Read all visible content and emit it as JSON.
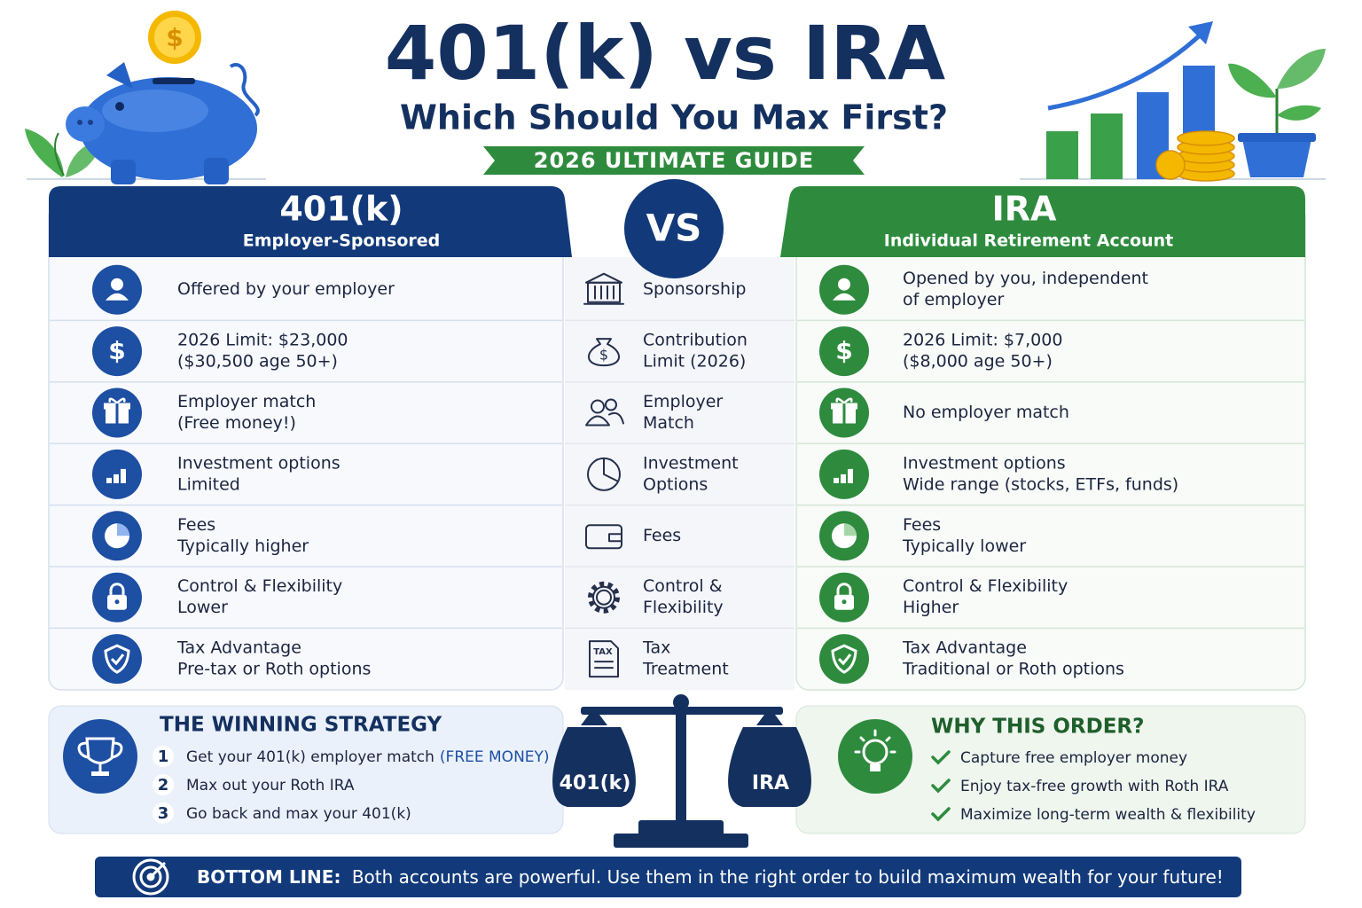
{
  "header": {
    "title": "401(k) vs IRA",
    "subtitle": "Which Should You Max First?",
    "badge": "2026 ULTIMATE GUIDE"
  },
  "icon_text": {
    "dollar": "$",
    "tax": "TAX"
  },
  "vs": "VS",
  "left": {
    "title": "401(k)",
    "subtitle": "Employer-Sponsored",
    "rows": [
      [
        "Offered by your employer"
      ],
      [
        "2026 Limit: $23,000",
        "($30,500 age 50+)"
      ],
      [
        "Employer match",
        "(Free money!)"
      ],
      [
        "Investment options",
        "Limited"
      ],
      [
        "Fees",
        "Typically higher"
      ],
      [
        "Control & Flexibility",
        "Lower"
      ],
      [
        "Tax Advantage",
        "Pre-tax or Roth options"
      ]
    ]
  },
  "middle": {
    "rows": [
      [
        "Sponsorship"
      ],
      [
        "Contribution",
        "Limit (2026)"
      ],
      [
        "Employer",
        "Match"
      ],
      [
        "Investment",
        "Options"
      ],
      [
        "Fees"
      ],
      [
        "Control &",
        "Flexibility"
      ],
      [
        "Tax",
        "Treatment"
      ]
    ]
  },
  "right": {
    "title": "IRA",
    "subtitle": "Individual Retirement Account",
    "rows": [
      [
        "Opened by you, independent",
        "of employer"
      ],
      [
        "2026 Limit: $7,000",
        "($8,000 age 50+)"
      ],
      [
        "No employer match"
      ],
      [
        "Investment options",
        "Wide range (stocks, ETFs, funds)"
      ],
      [
        "Fees",
        "Typically lower"
      ],
      [
        "Control & Flexibility",
        "Higher"
      ],
      [
        "Tax Advantage",
        "Traditional or Roth options"
      ]
    ]
  },
  "strategy": {
    "title": "THE WINNING STRATEGY",
    "steps": [
      {
        "number": "1",
        "text": "Get your 401(k) employer match",
        "note": "(FREE MONEY)"
      },
      {
        "number": "2",
        "text": "Max out your Roth IRA"
      },
      {
        "number": "3",
        "text": "Go back and max your 401(k)"
      }
    ]
  },
  "scale": {
    "left_label": "401(k)",
    "right_label": "IRA"
  },
  "why": {
    "title": "WHY THIS ORDER?",
    "items": [
      "Capture free employer money",
      "Enjoy tax-free growth with Roth IRA",
      "Maximize long-term wealth & flexibility"
    ]
  },
  "bottom_line": {
    "label": "BOTTOM LINE:",
    "text": "Both accounts are powerful. Use them in the right order to build maximum wealth for your future!"
  }
}
